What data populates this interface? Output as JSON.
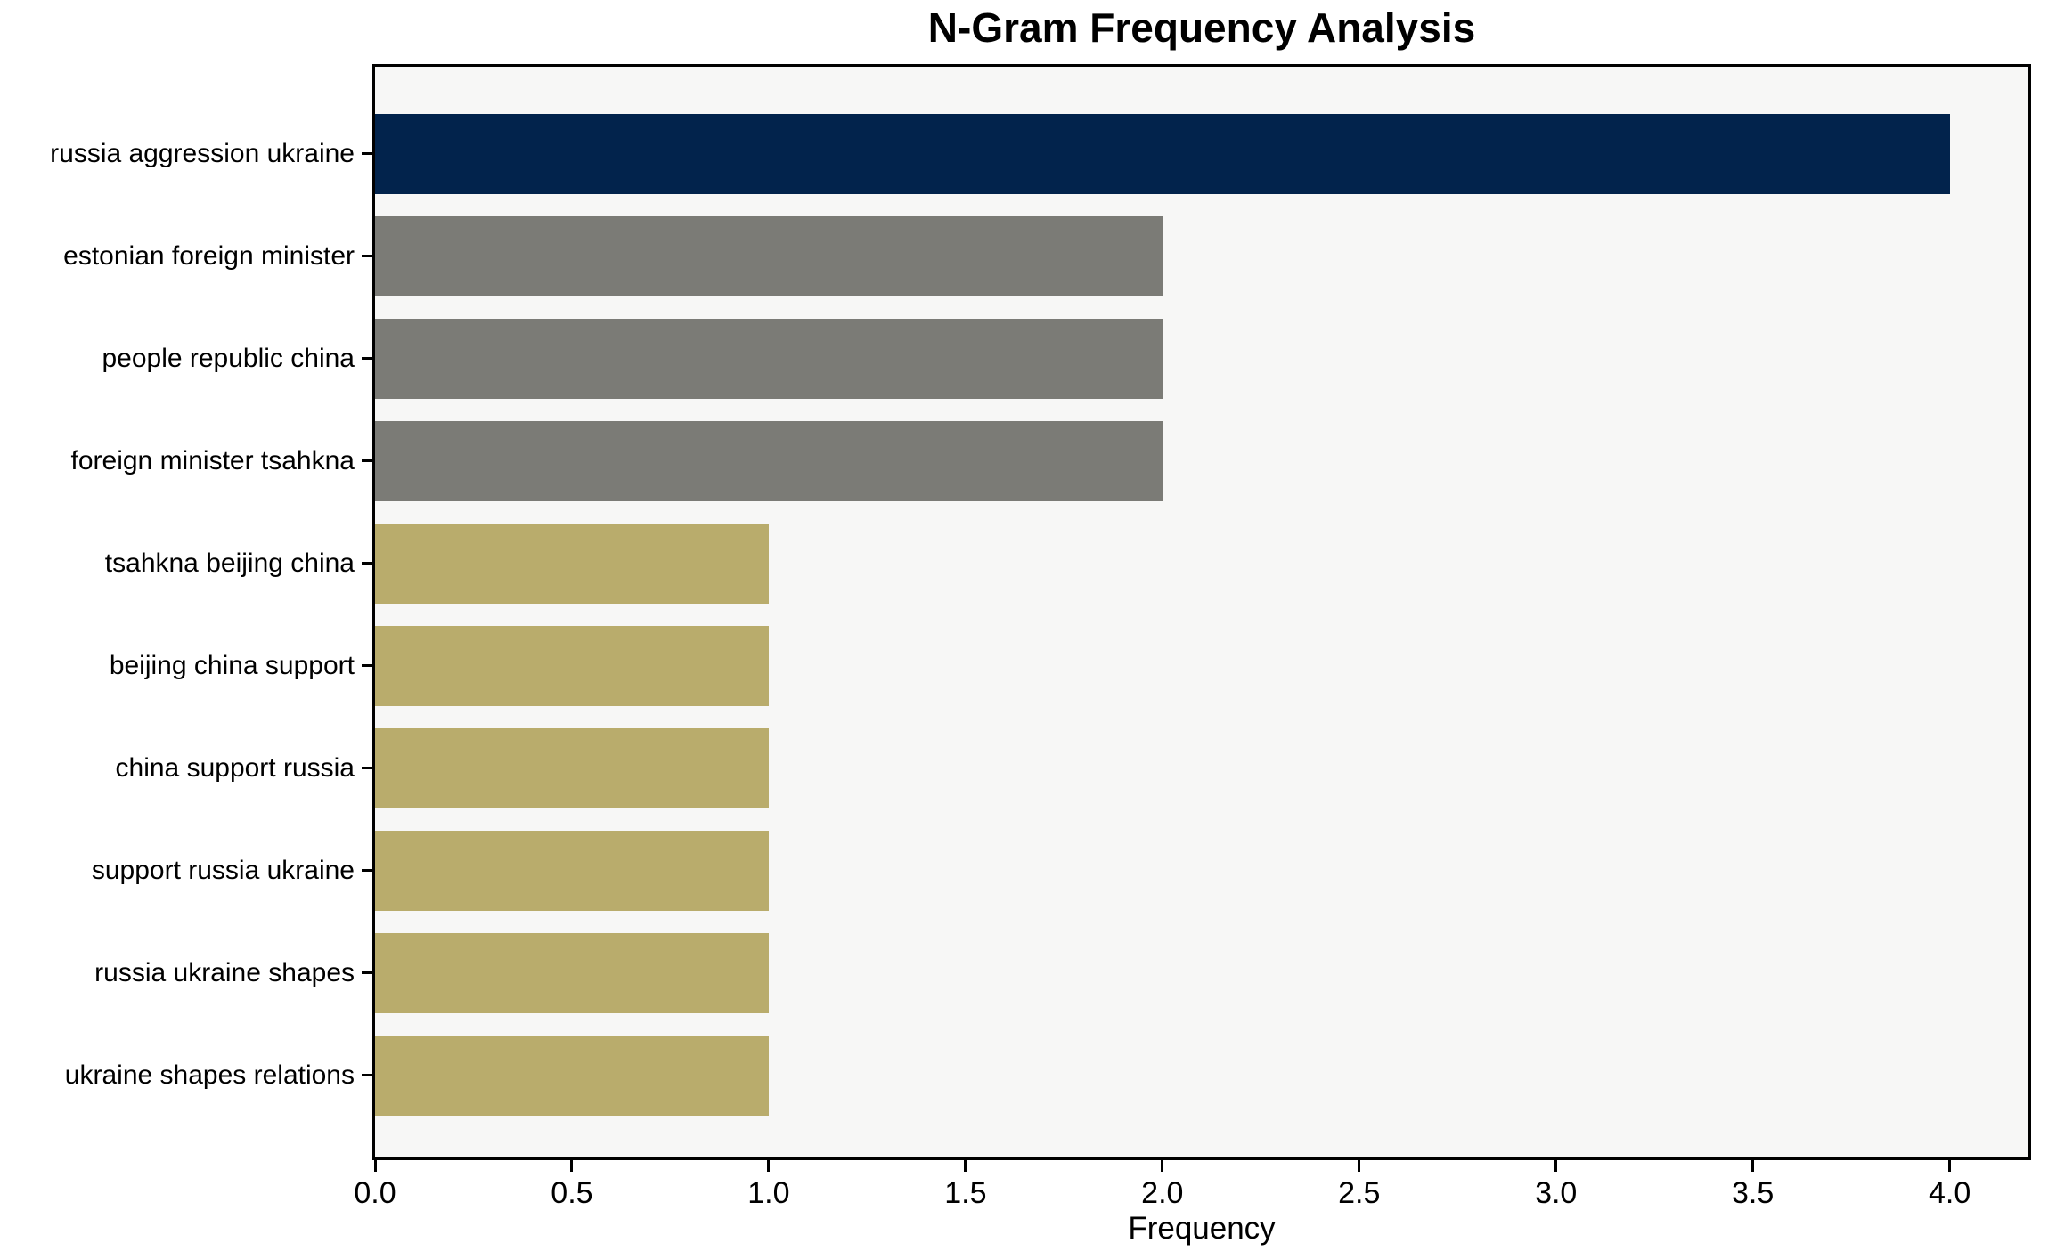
{
  "chart_data": {
    "type": "bar",
    "orientation": "horizontal",
    "title": "N-Gram Frequency Analysis",
    "xlabel": "Frequency",
    "ylabel": "",
    "categories": [
      "russia aggression ukraine",
      "estonian foreign minister",
      "people republic china",
      "foreign minister tsahkna",
      "tsahkna beijing china",
      "beijing china support",
      "china support russia",
      "support russia ukraine",
      "russia ukraine shapes",
      "ukraine shapes relations"
    ],
    "values": [
      4,
      2,
      2,
      2,
      1,
      1,
      1,
      1,
      1,
      1
    ],
    "bar_colors": [
      "#02234C",
      "#7B7B76",
      "#7B7B76",
      "#7B7B76",
      "#B9AC6C",
      "#B9AC6C",
      "#B9AC6C",
      "#B9AC6C",
      "#B9AC6C",
      "#B9AC6C"
    ],
    "xlim": [
      0,
      4.2
    ],
    "xticks": [
      0.0,
      0.5,
      1.0,
      1.5,
      2.0,
      2.5,
      3.0,
      3.5,
      4.0
    ],
    "xtick_labels": [
      "0.0",
      "0.5",
      "1.0",
      "1.5",
      "2.0",
      "2.5",
      "3.0",
      "3.5",
      "4.0"
    ],
    "grid": false,
    "legend": null,
    "colors": {
      "highlight": "#02234C",
      "secondary": "#7B7B76",
      "base": "#B9AC6C",
      "plot_background": "#F7F7F6",
      "figure_background": "#FFFFFF",
      "axis": "#000000",
      "text": "#000000"
    }
  }
}
